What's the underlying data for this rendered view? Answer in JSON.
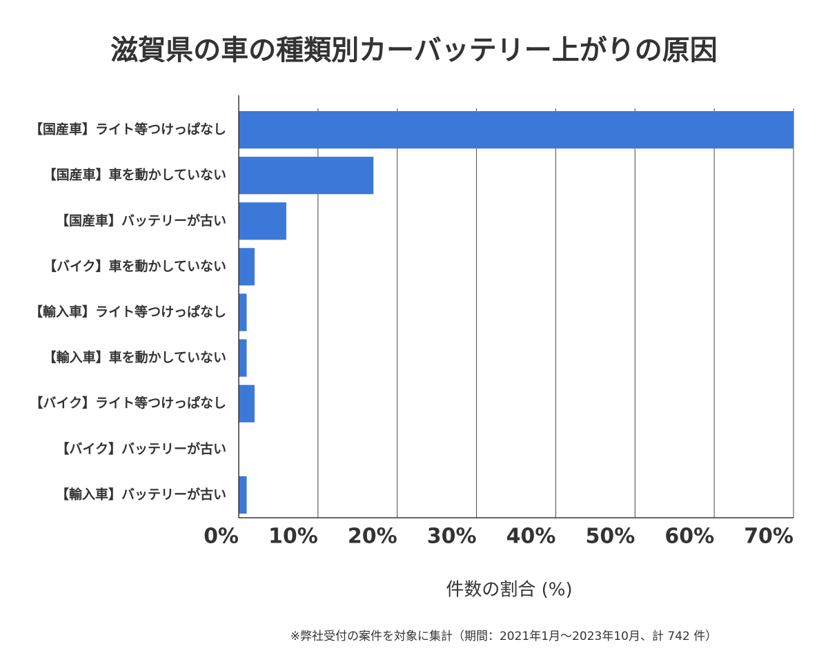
{
  "chart_data": {
    "type": "barh",
    "title": "滋賀県の車の種類別カーバッテリー上がりの原因",
    "categories": [
      "【国産車】ライト等つけっぱなし",
      "【国産車】車を動かしていない",
      "【国産車】バッテリーが古い",
      "【バイク】車を動かしていない",
      "【輸入車】ライト等つけっぱなし",
      "【輸入車】車を動かしていない",
      "【バイク】ライト等つけっぱなし",
      "【バイク】バッテリーが古い",
      "【輸入車】バッテリーが古い"
    ],
    "values": [
      70,
      17,
      6,
      2,
      1,
      1,
      2,
      0,
      1
    ],
    "color": "#3c78d8",
    "xlim": [
      0,
      70
    ],
    "xticks": [
      {
        "value": 0,
        "label": "0%"
      },
      {
        "value": 10,
        "label": "10%"
      },
      {
        "value": 20,
        "label": "20%"
      },
      {
        "value": 30,
        "label": "30%"
      },
      {
        "value": 40,
        "label": "40%"
      },
      {
        "value": 50,
        "label": "50%"
      },
      {
        "value": 60,
        "label": "60%"
      },
      {
        "value": 70,
        "label": "70%"
      }
    ],
    "xlabel": "件数の割合 (%)",
    "footnote": "※弊社受付の案件を対象に集計（期間：2021年1月～2023年10月、計 742 件）",
    "grid": true
  }
}
